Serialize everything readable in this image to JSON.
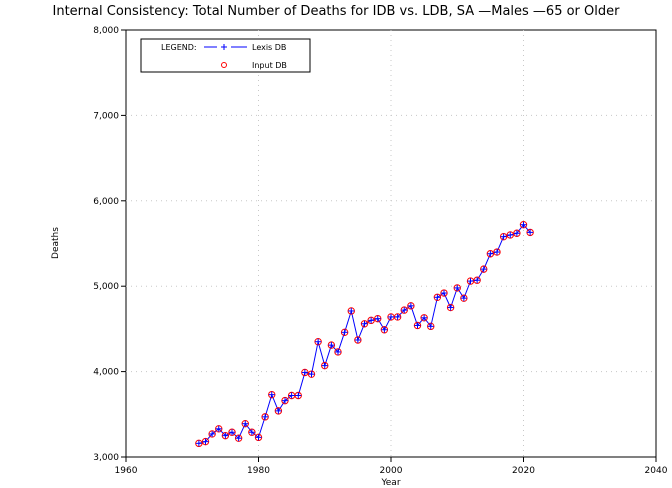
{
  "chart_data": {
    "type": "line",
    "title": "Internal Consistency: Total Number of Deaths for IDB vs. LDB, SA  —Males  —65 or Older",
    "xlabel": "Year",
    "ylabel": "Deaths",
    "xlim": [
      1960,
      2040
    ],
    "ylim": [
      3000,
      8000
    ],
    "x_ticks": [
      1960,
      1980,
      2000,
      2020,
      2040
    ],
    "y_ticks": [
      3000,
      4000,
      5000,
      6000,
      7000,
      8000
    ],
    "x_tick_labels": [
      "1960",
      "1980",
      "2000",
      "2020",
      "2040"
    ],
    "y_tick_labels": [
      "3,000",
      "4,000",
      "5,000",
      "6,000",
      "7,000",
      "8,000"
    ],
    "grid": true,
    "legend": {
      "placement": "top-left",
      "heading": "LEGEND:",
      "entries": [
        "Lexis DB",
        "Input DB"
      ]
    },
    "x": [
      1971,
      1972,
      1973,
      1974,
      1975,
      1976,
      1977,
      1978,
      1979,
      1980,
      1981,
      1982,
      1983,
      1984,
      1985,
      1986,
      1987,
      1988,
      1989,
      1990,
      1991,
      1992,
      1993,
      1994,
      1995,
      1996,
      1997,
      1998,
      1999,
      2000,
      2001,
      2002,
      2003,
      2004,
      2005,
      2006,
      2007,
      2008,
      2009,
      2010,
      2011,
      2012,
      2013,
      2014,
      2015,
      2016,
      2017,
      2018,
      2019,
      2020,
      2021
    ],
    "series": [
      {
        "name": "Lexis DB",
        "color": "#0000ff",
        "marker": "plus",
        "values": [
          3160,
          3180,
          3270,
          3330,
          3250,
          3290,
          3220,
          3390,
          3290,
          3230,
          3470,
          3730,
          3540,
          3660,
          3720,
          3720,
          3990,
          3970,
          4350,
          4070,
          4310,
          4230,
          4460,
          4710,
          4370,
          4560,
          4600,
          4620,
          4490,
          4640,
          4640,
          4720,
          4770,
          4540,
          4630,
          4530,
          4870,
          4920,
          4750,
          4980,
          4860,
          5060,
          5070,
          5200,
          5380,
          5400,
          5580,
          5600,
          5620,
          5720,
          5630
        ]
      },
      {
        "name": "Input DB",
        "color": "#ff0000",
        "marker": "circle",
        "values": [
          3160,
          3180,
          3270,
          3330,
          3250,
          3290,
          3220,
          3390,
          3290,
          3230,
          3470,
          3730,
          3540,
          3660,
          3720,
          3720,
          3990,
          3970,
          4350,
          4070,
          4310,
          4230,
          4460,
          4710,
          4370,
          4560,
          4600,
          4620,
          4490,
          4640,
          4640,
          4720,
          4770,
          4540,
          4630,
          4530,
          4870,
          4920,
          4750,
          4980,
          4860,
          5060,
          5070,
          5200,
          5380,
          5400,
          5580,
          5600,
          5620,
          5720,
          5630
        ]
      }
    ]
  }
}
